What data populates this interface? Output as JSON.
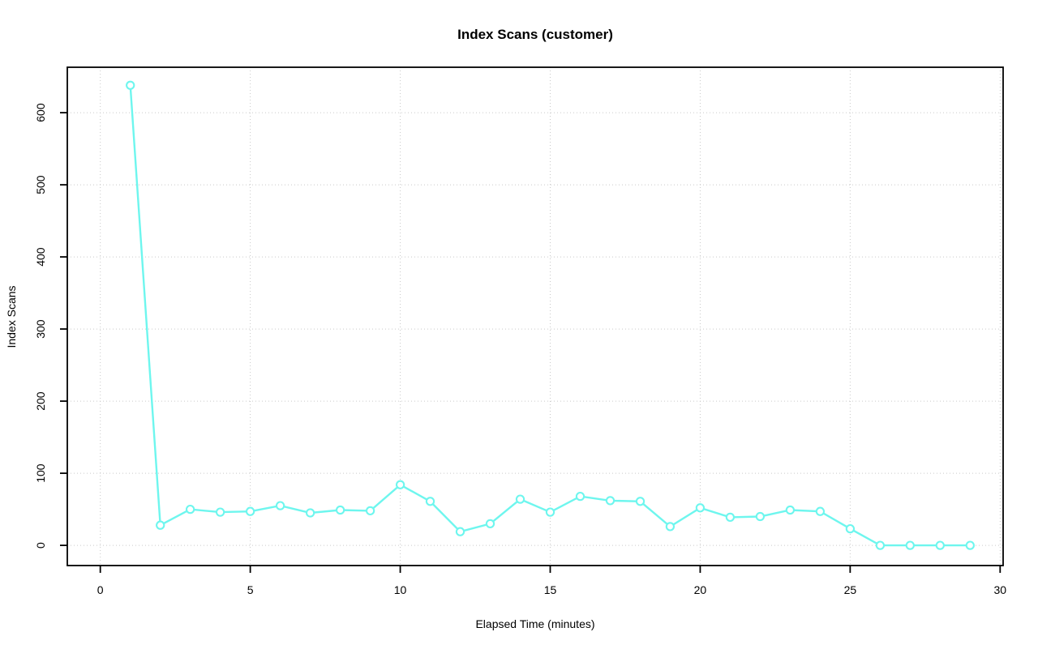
{
  "chart_data": {
    "type": "line",
    "title": "Index Scans (customer)",
    "xlabel": "Elapsed Time (minutes)",
    "ylabel": "Index Scans",
    "series": [
      {
        "name": "customer index scans",
        "x": [
          1,
          2,
          3,
          4,
          5,
          6,
          7,
          8,
          9,
          10,
          11,
          12,
          13,
          14,
          15,
          16,
          17,
          18,
          19,
          20,
          21,
          22,
          23,
          24,
          25,
          26,
          27,
          28,
          29
        ],
        "values": [
          638,
          28,
          50,
          46,
          47,
          55,
          45,
          49,
          48,
          84,
          61,
          19,
          30,
          64,
          46,
          68,
          62,
          61,
          26,
          52,
          39,
          40,
          49,
          47,
          23,
          0,
          0,
          0,
          0
        ]
      }
    ],
    "x_ticks": [
      0,
      5,
      10,
      15,
      20,
      25,
      30
    ],
    "y_ticks": [
      0,
      100,
      200,
      300,
      400,
      500,
      600
    ],
    "xlim": [
      -1.1,
      30.1
    ],
    "ylim": [
      -28,
      663
    ],
    "grid": "dotted",
    "legend": "none",
    "line_color": "#6EF6EE",
    "marker": "open-circle",
    "marker_fill": "#ffffff",
    "grid_color": "#C9C9C9",
    "axis_color": "#000000",
    "background": "#ffffff"
  }
}
